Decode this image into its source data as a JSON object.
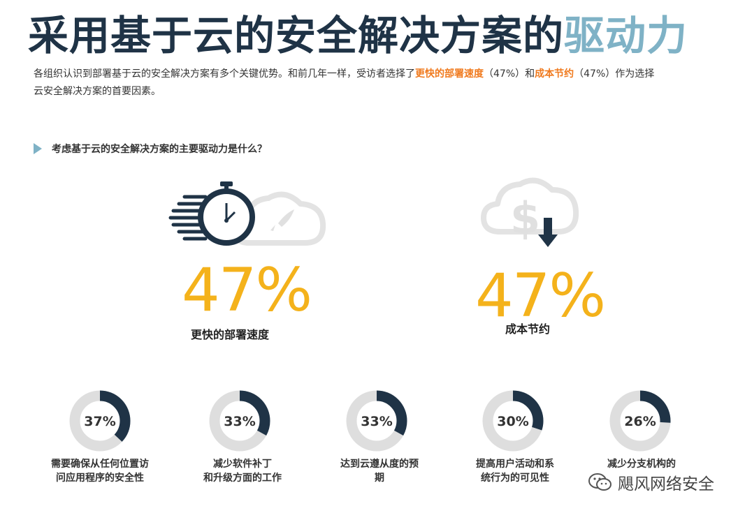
{
  "title": {
    "main": "采用基于云的安全解决方案的",
    "highlight": "驱动力"
  },
  "intro": {
    "part1": "各组织认识到部署基于云的安全解决方案有多个关键优势。和前几年一样，受访者选择了",
    "accent1": "更快的部署速度",
    "part2": "（47%）和",
    "accent2": "成本节约",
    "part3": "（47%）作为选择云安全解决方案的首要因素。"
  },
  "question": "考虑基于云的安全解决方案的主要驱动力是什么？",
  "highlights": [
    {
      "value": "47%",
      "label": "更快的部署速度",
      "icon": "stopwatch-rocket-cloud-icon"
    },
    {
      "value": "47%",
      "label": "成本节约",
      "icon": "dollar-cloud-down-icon"
    }
  ],
  "donuts": [
    {
      "pct": 37,
      "value": "37%",
      "label_lines": [
        "需要确保从任何位置访",
        "问应用程序的安全性"
      ]
    },
    {
      "pct": 33,
      "value": "33%",
      "label_lines": [
        "减少软件补丁",
        "和升级方面的工作"
      ]
    },
    {
      "pct": 33,
      "value": "33%",
      "label_lines": [
        "达到云遵从度的预",
        "期"
      ]
    },
    {
      "pct": 30,
      "value": "30%",
      "label_lines": [
        "提高用户活动和系",
        "统行为的可见性"
      ]
    },
    {
      "pct": 26,
      "value": "26%",
      "label_lines": [
        "减少分支机构的",
        ""
      ]
    }
  ],
  "watermark": {
    "text": "飓风网络安全",
    "icon": "wechat-icon"
  },
  "colors": {
    "navy": "#1f3346",
    "track": "#dedede",
    "accent": "#f07a1e",
    "gold": "#f4b21b",
    "light_blue": "#7fb2c6"
  }
}
